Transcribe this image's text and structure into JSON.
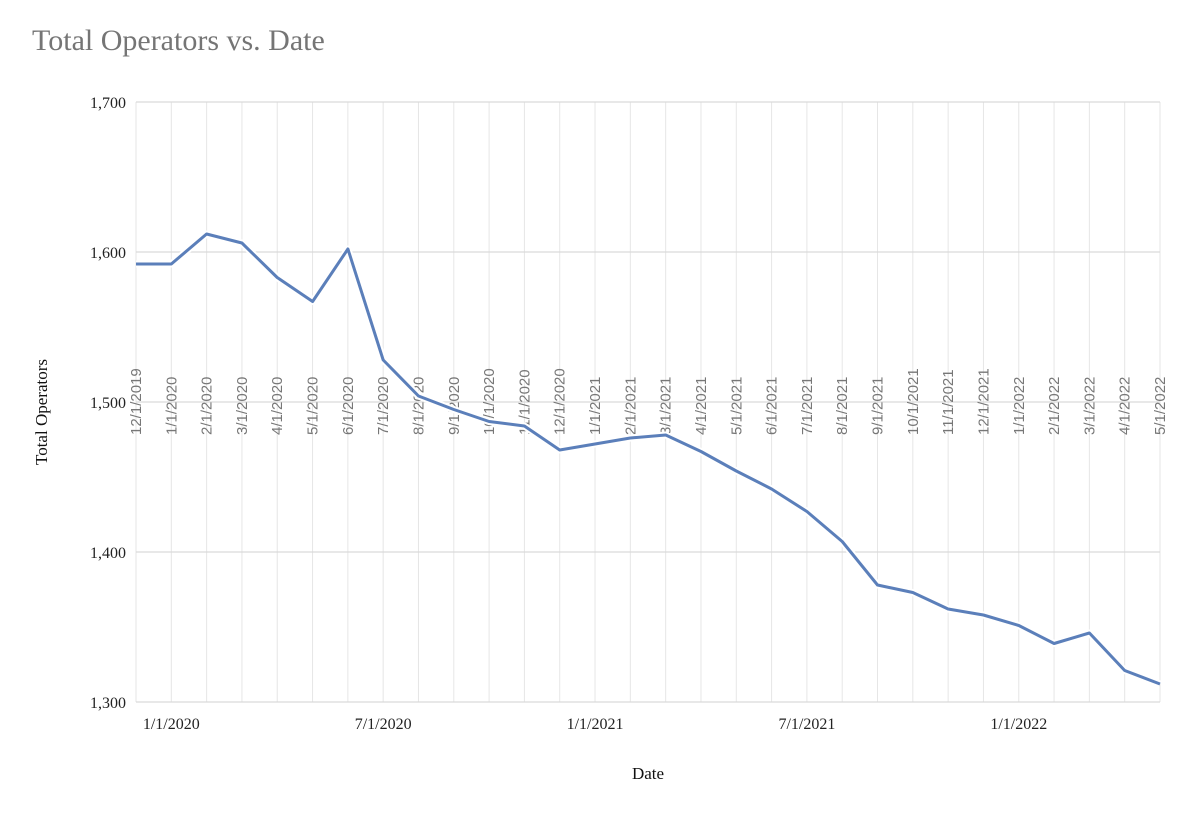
{
  "chart_data": {
    "type": "line",
    "title": "Total Operators vs. Date",
    "xlabel": "Date",
    "ylabel": "Total Operators",
    "ylim": [
      1300,
      1700
    ],
    "yticks": [
      "1,300",
      "1,400",
      "1,500",
      "1,600",
      "1,700"
    ],
    "ytick_values": [
      1300,
      1400,
      1500,
      1600,
      1700
    ],
    "xlim": [
      "12/1/2019",
      "5/1/2022"
    ],
    "xticks": [
      "1/1/2020",
      "7/1/2020",
      "1/1/2021",
      "7/1/2021",
      "1/1/2022"
    ],
    "xtick_index": [
      1,
      7,
      13,
      19,
      25
    ],
    "categories": [
      "12/1/2019",
      "1/1/2020",
      "2/1/2020",
      "3/1/2020",
      "4/1/2020",
      "5/1/2020",
      "6/1/2020",
      "7/1/2020",
      "8/1/2020",
      "9/1/2020",
      "10/1/2020",
      "11/1/2020",
      "12/1/2020",
      "1/1/2021",
      "2/1/2021",
      "3/1/2021",
      "4/1/2021",
      "5/1/2021",
      "6/1/2021",
      "7/1/2021",
      "8/1/2021",
      "9/1/2021",
      "10/1/2021",
      "11/1/2021",
      "12/1/2021",
      "1/1/2022",
      "2/1/2022",
      "3/1/2022",
      "4/1/2022",
      "5/1/2022"
    ],
    "x": [
      "12/1/2019",
      "1/1/2020",
      "2/1/2020",
      "3/1/2020",
      "4/1/2020",
      "5/1/2020",
      "6/1/2020",
      "7/1/2020",
      "8/1/2020",
      "9/1/2020",
      "10/1/2020",
      "11/1/2020",
      "12/1/2020",
      "1/1/2021",
      "2/1/2021",
      "3/1/2021",
      "4/1/2021",
      "5/1/2021",
      "6/1/2021",
      "7/1/2021",
      "8/1/2021",
      "9/1/2021",
      "10/1/2021",
      "11/1/2021",
      "12/1/2021",
      "1/1/2022",
      "2/1/2022",
      "3/1/2022",
      "4/1/2022",
      "5/1/2022"
    ],
    "series": [
      {
        "values": [
          1592,
          1592,
          1612,
          1606,
          1583,
          1567,
          1602,
          1528,
          1504,
          1495,
          1487,
          1484,
          1468,
          1472,
          1476,
          1478,
          1467,
          1454,
          1442,
          1427,
          1407,
          1378,
          1373,
          1362,
          1358,
          1351,
          1339,
          1346,
          1321,
          1312
        ],
        "color": "#5b7fba"
      }
    ],
    "grid": true,
    "legend": "none",
    "gridline_color": "#d9d9d9"
  }
}
